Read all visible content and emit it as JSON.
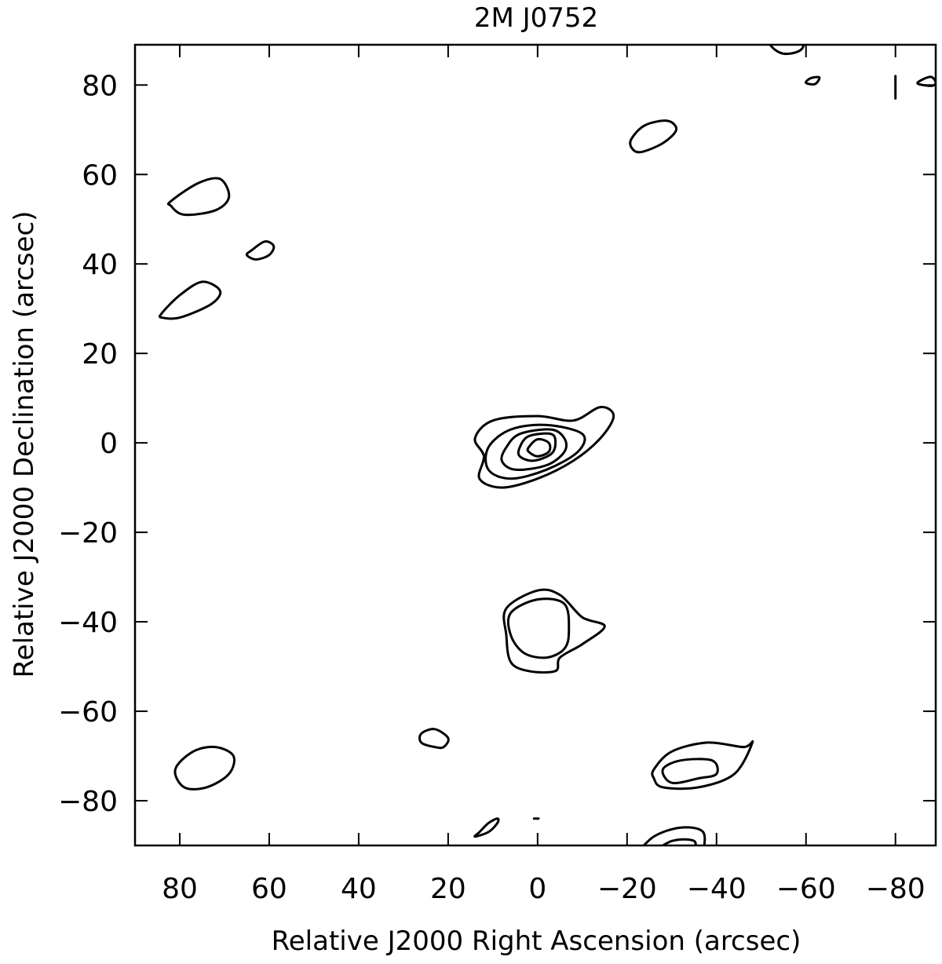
{
  "chart_data": {
    "type": "contour",
    "title": "2M J0752",
    "xlabel": "Relative J2000 Right Ascension (arcsec)",
    "ylabel": "Relative J2000 Declination (arcsec)",
    "xlim": [
      90,
      -89
    ],
    "ylim": [
      -90,
      89
    ],
    "x_ticks": [
      80,
      60,
      40,
      20,
      0,
      -20,
      -40,
      -60,
      -80
    ],
    "y_ticks": [
      80,
      60,
      40,
      20,
      0,
      -20,
      -40,
      -60,
      -80
    ],
    "x_tick_labels": [
      "80",
      "60",
      "40",
      "20",
      "0",
      "−20",
      "−40",
      "−60",
      "−80"
    ],
    "y_tick_labels": [
      "80",
      "60",
      "40",
      "20",
      "0",
      "−20",
      "−40",
      "−60",
      "−80"
    ],
    "grid": false,
    "contours": [
      {
        "name": "central-source-level-1",
        "points": [
          [
            14,
            1
          ],
          [
            10,
            5
          ],
          [
            0,
            6
          ],
          [
            -8,
            5
          ],
          [
            -14,
            8
          ],
          [
            -17,
            6
          ],
          [
            -14,
            1
          ],
          [
            -8,
            -4
          ],
          [
            0,
            -8
          ],
          [
            8,
            -10
          ],
          [
            13,
            -8
          ],
          [
            12,
            -3
          ]
        ]
      },
      {
        "name": "central-source-level-2",
        "points": [
          [
            11,
            -1
          ],
          [
            6,
            3
          ],
          [
            -2,
            4
          ],
          [
            -10,
            2
          ],
          [
            -9,
            -2
          ],
          [
            -2,
            -6
          ],
          [
            6,
            -8
          ],
          [
            11,
            -6
          ]
        ]
      },
      {
        "name": "central-source-level-3",
        "points": [
          [
            7,
            -1
          ],
          [
            4,
            2
          ],
          [
            -3,
            3
          ],
          [
            -6,
            1
          ],
          [
            -6,
            -2
          ],
          [
            -2,
            -5
          ],
          [
            5,
            -6
          ],
          [
            8,
            -4
          ]
        ]
      },
      {
        "name": "central-source-level-4",
        "points": [
          [
            4,
            -1
          ],
          [
            2,
            1.5
          ],
          [
            -3,
            2
          ],
          [
            -4,
            0
          ],
          [
            -3,
            -2.5
          ],
          [
            1,
            -4
          ],
          [
            4,
            -3
          ]
        ]
      },
      {
        "name": "central-source-level-5",
        "points": [
          [
            2,
            -1
          ],
          [
            0,
            0.8
          ],
          [
            -2.5,
            0
          ],
          [
            -2.5,
            -2
          ],
          [
            0,
            -3
          ],
          [
            2,
            -2
          ]
        ]
      },
      {
        "name": "south-source-outer",
        "points": [
          [
            7,
            -37
          ],
          [
            0,
            -33
          ],
          [
            -5,
            -34
          ],
          [
            -10,
            -39
          ],
          [
            -15,
            -41
          ],
          [
            -10,
            -45
          ],
          [
            -5,
            -48
          ],
          [
            -4,
            -51
          ],
          [
            2,
            -51
          ],
          [
            6,
            -49
          ],
          [
            7,
            -43
          ]
        ]
      },
      {
        "name": "south-source-inner",
        "points": [
          [
            6,
            -38
          ],
          [
            0,
            -35
          ],
          [
            -6,
            -36
          ],
          [
            -7,
            -42
          ],
          [
            -6,
            -46
          ],
          [
            -2,
            -48
          ],
          [
            3,
            -47
          ],
          [
            6,
            -43
          ]
        ]
      },
      {
        "name": "southeast-source-outer",
        "points": [
          [
            -26,
            -73
          ],
          [
            -30,
            -69
          ],
          [
            -38,
            -67
          ],
          [
            -46,
            -68
          ],
          [
            -48,
            -67
          ],
          [
            -44,
            -74
          ],
          [
            -36,
            -77
          ],
          [
            -28,
            -77
          ],
          [
            -26,
            -75
          ]
        ]
      },
      {
        "name": "southeast-source-inner",
        "points": [
          [
            -28,
            -73
          ],
          [
            -32,
            -71
          ],
          [
            -39,
            -71
          ],
          [
            -40,
            -74
          ],
          [
            -36,
            -75
          ],
          [
            -30,
            -76
          ]
        ]
      },
      {
        "name": "bottom-source-outer",
        "points": [
          [
            -22,
            -92
          ],
          [
            -26,
            -88
          ],
          [
            -32,
            -86
          ],
          [
            -37,
            -87
          ],
          [
            -37,
            -92
          ]
        ]
      },
      {
        "name": "bottom-source-inner",
        "points": [
          [
            -25,
            -92
          ],
          [
            -30,
            -89
          ],
          [
            -35,
            -89
          ],
          [
            -35,
            -92
          ]
        ]
      },
      {
        "name": "northwest-blob-upper",
        "points": [
          [
            82,
            54
          ],
          [
            76,
            58
          ],
          [
            71,
            59
          ],
          [
            69,
            55
          ],
          [
            72,
            52
          ],
          [
            79,
            51
          ],
          [
            82,
            53
          ]
        ]
      },
      {
        "name": "northwest-blob-small",
        "points": [
          [
            64,
            43
          ],
          [
            61,
            45
          ],
          [
            59,
            44
          ],
          [
            60,
            42
          ],
          [
            63,
            41
          ],
          [
            65,
            42
          ]
        ]
      },
      {
        "name": "northwest-blob-lower",
        "points": [
          [
            84,
            29
          ],
          [
            80,
            33
          ],
          [
            75,
            36
          ],
          [
            71,
            34
          ],
          [
            73,
            31
          ],
          [
            80,
            28
          ],
          [
            84,
            28
          ]
        ]
      },
      {
        "name": "north-blob",
        "points": [
          [
            -21,
            68
          ],
          [
            -24,
            71
          ],
          [
            -29,
            72
          ],
          [
            -31,
            70
          ],
          [
            -28,
            67
          ],
          [
            -23,
            65
          ],
          [
            -21,
            66
          ]
        ]
      },
      {
        "name": "top-right-arc",
        "points": [
          [
            -52,
            92
          ],
          [
            -52,
            89
          ],
          [
            -55,
            87
          ],
          [
            -59,
            88
          ],
          [
            -60,
            92
          ]
        ]
      },
      {
        "name": "top-right-small-1",
        "points": [
          [
            -60,
            80.5
          ],
          [
            -61,
            81.5
          ],
          [
            -63,
            81.7
          ],
          [
            -62,
            80.2
          ]
        ]
      },
      {
        "name": "top-right-small-2",
        "points": [
          [
            -85,
            80.3
          ],
          [
            -86,
            81.2
          ],
          [
            -88,
            81.8
          ],
          [
            -89,
            80.5
          ],
          [
            -88,
            79.8
          ]
        ]
      },
      {
        "name": "top-right-tick",
        "points": [
          [
            -80,
            82
          ],
          [
            -80,
            77
          ]
        ]
      },
      {
        "name": "southwest-ellipse",
        "points": [
          [
            68,
            -70
          ],
          [
            72,
            -68
          ],
          [
            77,
            -69
          ],
          [
            81,
            -73
          ],
          [
            79,
            -77
          ],
          [
            74,
            -77
          ],
          [
            69,
            -74
          ]
        ]
      },
      {
        "name": "south-small-blob",
        "points": [
          [
            20,
            -66
          ],
          [
            23,
            -64
          ],
          [
            26,
            -65
          ],
          [
            26,
            -67
          ],
          [
            23,
            -68
          ],
          [
            21,
            -68
          ]
        ]
      },
      {
        "name": "bottom-left-small",
        "points": [
          [
            9,
            -84
          ],
          [
            11,
            -85
          ],
          [
            13,
            -87
          ],
          [
            14,
            -88
          ],
          [
            11,
            -87
          ],
          [
            9,
            -85
          ]
        ]
      },
      {
        "name": "bottom-dot",
        "points": [
          [
            0.8,
            -84
          ],
          [
            -0.2,
            -84
          ]
        ]
      }
    ]
  }
}
